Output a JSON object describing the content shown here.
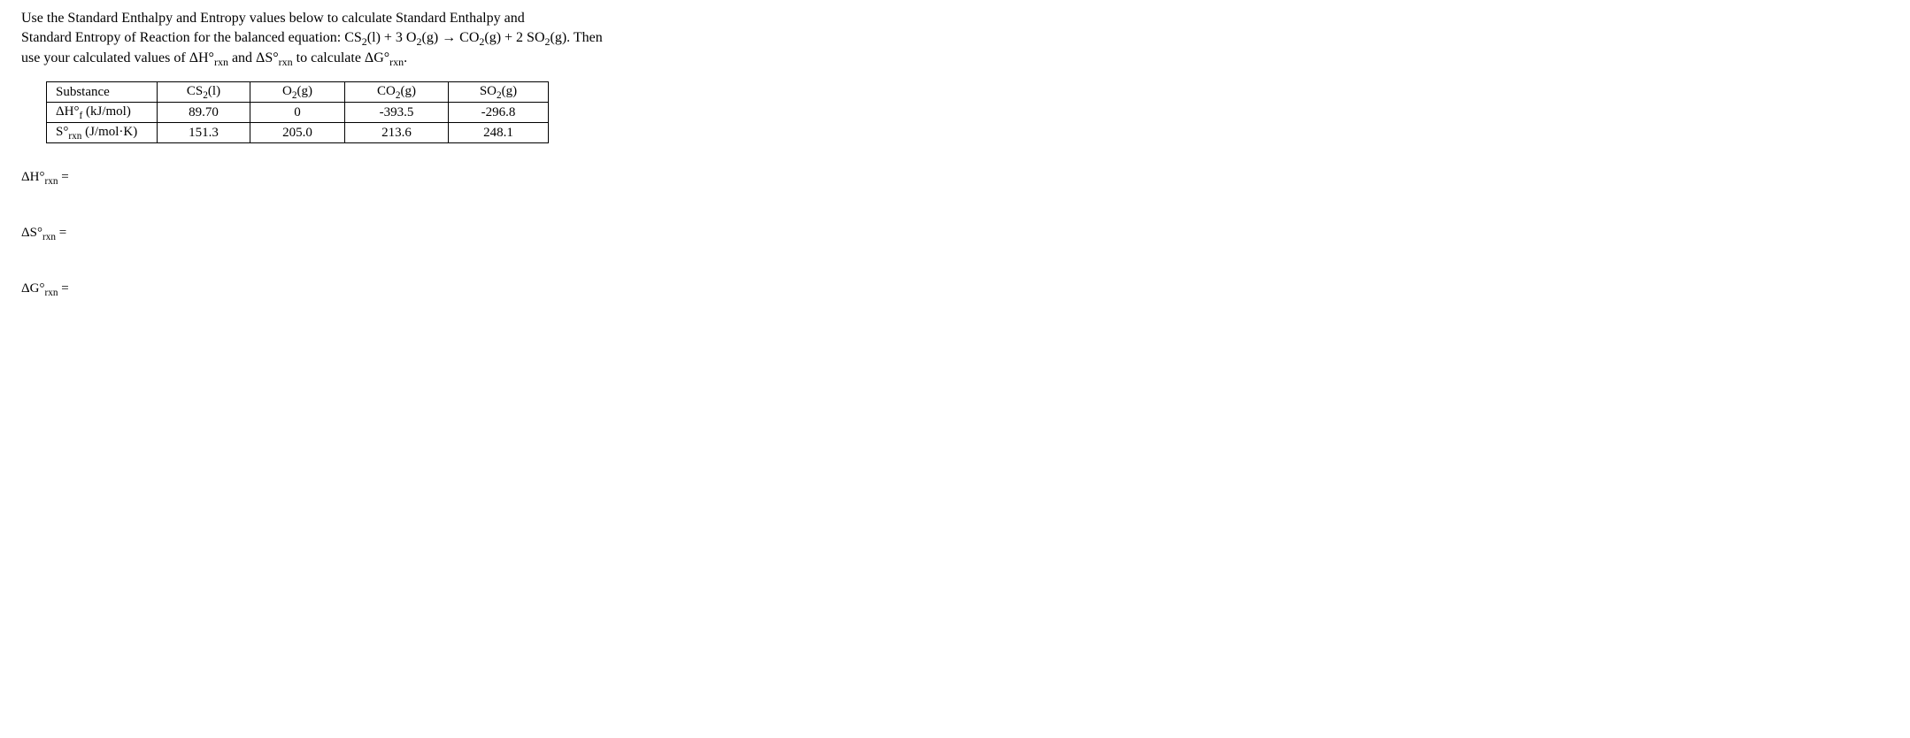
{
  "prompt": {
    "line1_pre": "Use the Standard Enthalpy and Entropy values below to calculate Standard Enthalpy and",
    "line2_pre": "Standard Entropy of Reaction for the balanced equation: ",
    "eq_cs2": "CS",
    "eq_cs2_sub": "2",
    "eq_cs2_state": "(l) + 3 O",
    "eq_o2_sub": "2",
    "eq_o2_state": "(g) → CO",
    "eq_co2_sub": "2",
    "eq_co2_state": "(g) + 2 SO",
    "eq_so2_sub": "2",
    "eq_so2_state": "(g).  Then",
    "line3_pre": "use your calculated values of ΔH°",
    "line3_rxn1": "rxn",
    "line3_mid": " and ΔS°",
    "line3_rxn2": "rxn",
    "line3_mid2": " to calculate ΔG°",
    "line3_rxn3": "rxn",
    "line3_end": "."
  },
  "table": {
    "headers": {
      "substance": "Substance",
      "cs2": "CS",
      "cs2_sub": "2",
      "cs2_state": "(l)",
      "o2": "O",
      "o2_sub": "2",
      "o2_state": "(g)",
      "co2": "CO",
      "co2_sub": "2",
      "co2_state": "(g)",
      "so2": "SO",
      "so2_sub": "2",
      "so2_state": "(g)"
    },
    "row_dH": {
      "label_pre": "ΔH°",
      "label_sub": "f",
      "label_post": " (kJ/mol)",
      "cs2": "89.70",
      "o2": "0",
      "co2": "-393.5",
      "so2": "-296.8"
    },
    "row_S": {
      "label_pre": "S°",
      "label_sub": "rxn",
      "label_post": " (J/mol·K)",
      "cs2": "151.3",
      "o2": "205.0",
      "co2": "213.6",
      "so2": "248.1"
    }
  },
  "answers": {
    "dH_pre": "ΔH°",
    "dH_sub": "rxn",
    "dH_eq": " =",
    "dS_pre": "ΔS°",
    "dS_sub": "rxn",
    "dS_eq": " =",
    "dG_pre": "ΔG°",
    "dG_sub": "rxn",
    "dG_eq": " ="
  },
  "style": {
    "font_family": "Times New Roman",
    "text_color": "#000000",
    "background_color": "#ffffff",
    "table_border_color": "#000000",
    "body_fontsize": 16,
    "table_fontsize": 15
  }
}
